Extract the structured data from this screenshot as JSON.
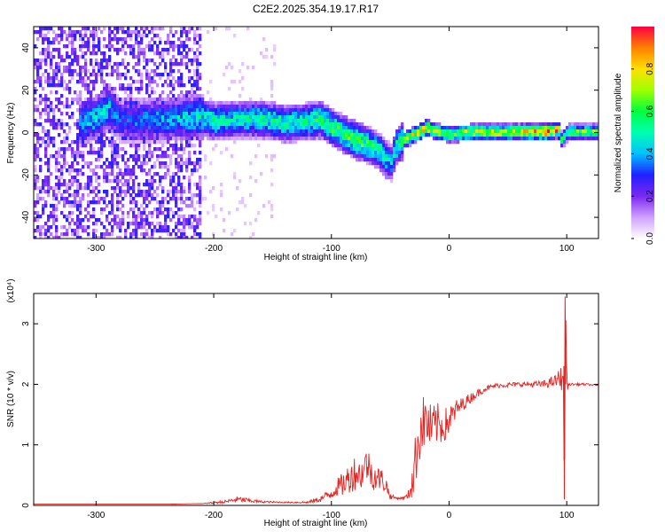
{
  "title": "C2E2.2025.354.19.17.R17",
  "chart_data": [
    {
      "type": "heatmap",
      "xlabel": "Height of straight line (km)",
      "ylabel": "Frequency (Hz)",
      "xlim": [
        -353,
        127
      ],
      "ylim": [
        -50,
        50
      ],
      "xticks": [
        -300,
        -200,
        -100,
        0,
        100
      ],
      "yticks": [
        -40,
        -20,
        0,
        20,
        40
      ],
      "grid": false,
      "colorbar": {
        "label": "Normalized spectral amplitude",
        "range": [
          0,
          1
        ],
        "ticks": [
          "0.0",
          "0.2",
          "0.4",
          "0.6",
          "0.8"
        ],
        "colors": [
          "#ffffff",
          "#d0a0ff",
          "#7a28f0",
          "#2020ff",
          "#00c0ff",
          "#00ffb0",
          "#00ff40",
          "#a0ff00",
          "#ffe000",
          "#ff8000",
          "#ff0040"
        ]
      },
      "ridge": {
        "x": [
          -315,
          -300,
          -290,
          -280,
          -212,
          -200,
          -180,
          -160,
          -140,
          -120,
          -110,
          -100,
          -90,
          -80,
          -70,
          -60,
          -55,
          -50,
          -45,
          -40,
          -30,
          -20,
          -10,
          0,
          20,
          40,
          60,
          80,
          92,
          95,
          100,
          127
        ],
        "y": [
          5,
          8,
          12,
          6,
          8,
          6,
          7,
          7,
          5,
          6,
          7,
          3,
          0,
          -3,
          -5,
          -8,
          -12,
          -13,
          -5,
          -3,
          0,
          3,
          1,
          0,
          1,
          1,
          1,
          1,
          2,
          -3,
          1,
          1
        ],
        "amplitude": [
          0.35,
          0.45,
          0.4,
          0.3,
          0.45,
          0.5,
          0.45,
          0.5,
          0.5,
          0.5,
          0.55,
          0.55,
          0.55,
          0.6,
          0.55,
          0.5,
          0.45,
          0.4,
          0.55,
          0.6,
          0.75,
          0.8,
          0.7,
          0.65,
          0.7,
          0.7,
          0.75,
          0.9,
          0.8,
          0.5,
          0.6,
          0.6
        ]
      },
      "noise_regions": [
        {
          "x": [
            -353,
            -212
          ],
          "y": [
            -50,
            50
          ],
          "amplitude": 0.25
        },
        {
          "x": [
            -212,
            -148
          ],
          "y": [
            -50,
            50
          ],
          "amplitude": 0.06
        }
      ]
    },
    {
      "type": "line",
      "xlabel": "Height of straight line (km)",
      "ylabel": "SNR (10 * v/v)",
      "y_multiplier": "(x10⁴)",
      "xlim": [
        -353,
        127
      ],
      "ylim": [
        0,
        3.5
      ],
      "xticks": [
        -300,
        -200,
        -100,
        0,
        100
      ],
      "yticks": [
        0,
        1,
        2,
        3
      ],
      "grid": false,
      "series": [
        {
          "color": "#e8201e",
          "x": [
            -353,
            -320,
            -280,
            -240,
            -210,
            -190,
            -180,
            -170,
            -160,
            -140,
            -120,
            -110,
            -100,
            -95,
            -90,
            -85,
            -80,
            -75,
            -70,
            -65,
            -60,
            -55,
            -50,
            -45,
            -40,
            -35,
            -30,
            -27,
            -24,
            -20,
            -15,
            -10,
            -5,
            0,
            5,
            10,
            20,
            30,
            40,
            60,
            80,
            90,
            95,
            97,
            98,
            99,
            100,
            101,
            102,
            105,
            115,
            127
          ],
          "y": [
            0.02,
            0.02,
            0.02,
            0.02,
            0.03,
            0.06,
            0.1,
            0.08,
            0.06,
            0.05,
            0.05,
            0.1,
            0.2,
            0.3,
            0.35,
            0.45,
            0.55,
            0.5,
            0.7,
            0.5,
            0.45,
            0.4,
            0.15,
            0.12,
            0.12,
            0.15,
            0.5,
            1.0,
            1.3,
            1.4,
            1.25,
            1.35,
            1.3,
            1.4,
            1.55,
            1.65,
            1.8,
            1.92,
            1.98,
            2.0,
            2.0,
            2.05,
            2.1,
            2.2,
            0.1,
            3.45,
            2.05,
            1.95,
            2.0,
            2.0,
            2.0,
            1.98
          ],
          "spread": [
            0,
            0,
            0,
            0,
            0,
            0.03,
            0.05,
            0.04,
            0.02,
            0.01,
            0.02,
            0.05,
            0.1,
            0.15,
            0.2,
            0.25,
            0.3,
            0.25,
            0.3,
            0.25,
            0.2,
            0.2,
            0.05,
            0.02,
            0.02,
            0.05,
            0.4,
            0.5,
            0.5,
            0.45,
            0.4,
            0.35,
            0.3,
            0.25,
            0.2,
            0.12,
            0.08,
            0.05,
            0.04,
            0.04,
            0.06,
            0.1,
            0.2,
            0.3,
            0,
            0,
            0.1,
            0.05,
            0.02,
            0.02,
            0.02,
            0.01
          ]
        }
      ]
    }
  ]
}
